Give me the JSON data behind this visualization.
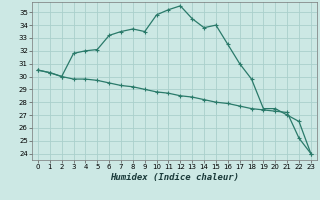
{
  "xlabel": "Humidex (Indice chaleur)",
  "background_color": "#cce8e4",
  "grid_color": "#aad0cc",
  "line_color": "#2a7a6a",
  "xlim": [
    -0.5,
    23.5
  ],
  "ylim": [
    23.5,
    35.8
  ],
  "xticks": [
    0,
    1,
    2,
    3,
    4,
    5,
    6,
    7,
    8,
    9,
    10,
    11,
    12,
    13,
    14,
    15,
    16,
    17,
    18,
    19,
    20,
    21,
    22,
    23
  ],
  "yticks": [
    24,
    25,
    26,
    27,
    28,
    29,
    30,
    31,
    32,
    33,
    34,
    35
  ],
  "series1_x": [
    0,
    1,
    2,
    3,
    4,
    5,
    6,
    7,
    8,
    9,
    10,
    11,
    12,
    13,
    14,
    15,
    16,
    17,
    18,
    19,
    20,
    21,
    22,
    23
  ],
  "series1_y": [
    30.5,
    30.3,
    30.0,
    31.8,
    32.0,
    32.1,
    33.2,
    33.5,
    33.7,
    33.5,
    34.8,
    35.2,
    35.5,
    34.5,
    33.8,
    34.0,
    32.5,
    31.0,
    29.8,
    27.5,
    27.5,
    27.0,
    26.5,
    24.0
  ],
  "series2_x": [
    0,
    1,
    2,
    3,
    4,
    5,
    6,
    7,
    8,
    9,
    10,
    11,
    12,
    13,
    14,
    15,
    16,
    17,
    18,
    19,
    20,
    21,
    22,
    23
  ],
  "series2_y": [
    30.5,
    30.3,
    30.0,
    29.8,
    29.8,
    29.7,
    29.5,
    29.3,
    29.2,
    29.0,
    28.8,
    28.7,
    28.5,
    28.4,
    28.2,
    28.0,
    27.9,
    27.7,
    27.5,
    27.4,
    27.3,
    27.2,
    25.2,
    24.0
  ],
  "tick_fontsize": 5.0,
  "xlabel_fontsize": 6.5
}
